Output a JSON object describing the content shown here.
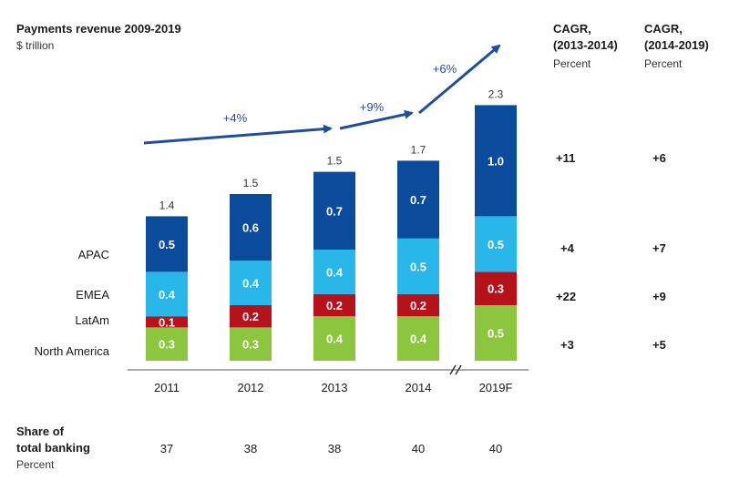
{
  "chart_data": {
    "type": "bar",
    "stacked": true,
    "title": "Payments revenue 2009-2019",
    "subtitle": "$ trillion",
    "categories": [
      "2011",
      "2012",
      "2013",
      "2014",
      "2019F"
    ],
    "series": [
      {
        "name": "North America",
        "values": [
          "0.3",
          "0.3",
          "0.4",
          "0.4",
          "0.5"
        ],
        "color": "#8cc63f"
      },
      {
        "name": "LatAm",
        "values": [
          "0.1",
          "0.2",
          "0.2",
          "0.2",
          "0.3"
        ],
        "color": "#b5121b"
      },
      {
        "name": "EMEA",
        "values": [
          "0.4",
          "0.4",
          "0.4",
          "0.5",
          "0.5"
        ],
        "color": "#29b6e8"
      },
      {
        "name": "APAC",
        "values": [
          "0.5",
          "0.6",
          "0.7",
          "0.7",
          "1.0"
        ],
        "color": "#0a4b9b"
      }
    ],
    "totals": [
      "1.4",
      "1.5",
      "1.5",
      "1.7",
      "2.3"
    ],
    "growth_annotations": [
      "+4%",
      "+9%",
      "+6%"
    ],
    "share": {
      "label_line1": "Share of",
      "label_line2": "total banking",
      "unit": "Percent",
      "values": [
        "37",
        "38",
        "38",
        "40",
        "40"
      ]
    },
    "cagr_columns": [
      {
        "line1": "CAGR,",
        "line2": "(2013-2014)",
        "unit": "Percent"
      },
      {
        "line1": "CAGR,",
        "line2": "(2014-2019)",
        "unit": "Percent"
      }
    ],
    "cagr_rows": [
      {
        "region": "APAC",
        "c1": "+11",
        "c2": "+6"
      },
      {
        "region": "EMEA",
        "c1": "+4",
        "c2": "+7"
      },
      {
        "region": "LatAm",
        "c1": "+22",
        "c2": "+9"
      },
      {
        "region": "North America",
        "c1": "+3",
        "c2": "+5"
      }
    ],
    "row_labels": [
      "APAC",
      "EMEA",
      "LatAm",
      "North America"
    ],
    "axis_break_between": [
      "2014",
      "2019F"
    ],
    "arrow_color": "#1f4e9c"
  }
}
